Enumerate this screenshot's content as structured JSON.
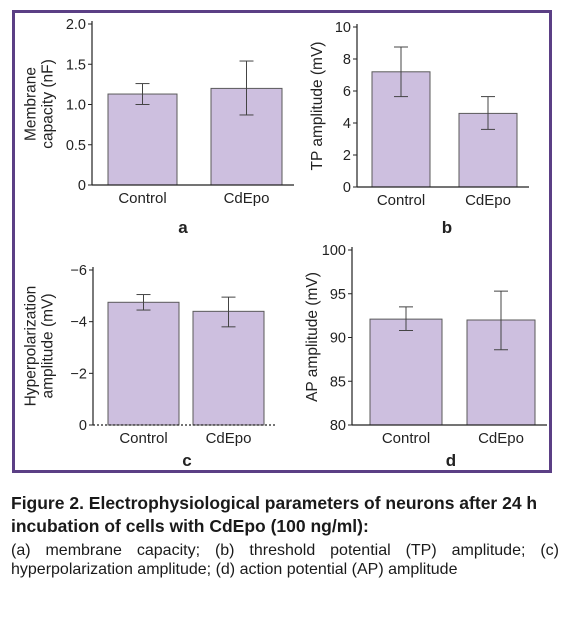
{
  "chart_data": [
    {
      "type": "bar",
      "panel_label": "a",
      "ylabel": "Membrane capacity (nF)",
      "ylabel_lines": [
        "Membrane",
        "capacity (nF)"
      ],
      "categories": [
        "Control",
        "CdEpo"
      ],
      "values": [
        1.13,
        1.2
      ],
      "error_low": [
        1.0,
        0.87
      ],
      "error_high": [
        1.26,
        1.54
      ],
      "ylim": [
        0,
        2.0
      ],
      "yticks": [
        "0",
        "0.5",
        "1.0",
        "1.5",
        "2.0"
      ],
      "ytick_values": [
        0,
        0.5,
        1.0,
        1.5,
        2.0
      ]
    },
    {
      "type": "bar",
      "panel_label": "b",
      "ylabel": "TP amplitude (mV)",
      "ylabel_lines": [
        "TP amplitude (mV)"
      ],
      "categories": [
        "Control",
        "CdEpo"
      ],
      "values": [
        7.2,
        4.6
      ],
      "error_low": [
        5.65,
        3.6
      ],
      "error_high": [
        8.75,
        5.65
      ],
      "ylim": [
        0,
        10
      ],
      "yticks": [
        "0",
        "2",
        "4",
        "6",
        "8",
        "10"
      ],
      "ytick_values": [
        0,
        2,
        4,
        6,
        8,
        10
      ]
    },
    {
      "type": "bar",
      "panel_label": "c",
      "ylabel": "Hyperpolarization amplitude (mV)",
      "ylabel_lines": [
        "Hyperpolarization",
        "amplitude (mV)"
      ],
      "categories": [
        "Control",
        "CdEpo"
      ],
      "values": [
        -4.75,
        -4.4
      ],
      "error_low": [
        -4.45,
        -3.8
      ],
      "error_high": [
        -5.05,
        -4.95
      ],
      "ylim": [
        0,
        -6
      ],
      "inverted": true,
      "yticks": [
        "0",
        "−2",
        "−4",
        "−6"
      ],
      "ytick_values": [
        0,
        -2,
        -4,
        -6
      ]
    },
    {
      "type": "bar",
      "panel_label": "d",
      "ylabel": "AP amplitude (mV)",
      "ylabel_lines": [
        "AP amplitude (mV)"
      ],
      "categories": [
        "Control",
        "CdEpo"
      ],
      "values": [
        92.1,
        92.0
      ],
      "error_low": [
        90.8,
        88.6
      ],
      "error_high": [
        93.5,
        95.3
      ],
      "ylim": [
        80,
        100
      ],
      "yticks": [
        "80",
        "85",
        "90",
        "95",
        "100"
      ],
      "ytick_values": [
        80,
        85,
        90,
        95,
        100
      ]
    }
  ],
  "colors": {
    "bar_fill": "#cdbfdf",
    "bar_stroke": "#5a5a5a",
    "frame": "#5b3f85",
    "axis": "#222222"
  },
  "caption": {
    "title": "Figure 2. Electrophysiological parameters of neurons after 24 h incubation of cells with CdEpo (100 ng/ml):",
    "body": "(a) membrane capacity; (b) threshold potential (TP) amplitude; (c) hyperpolarization amplitude; (d) action potential (AP) amplitude"
  }
}
